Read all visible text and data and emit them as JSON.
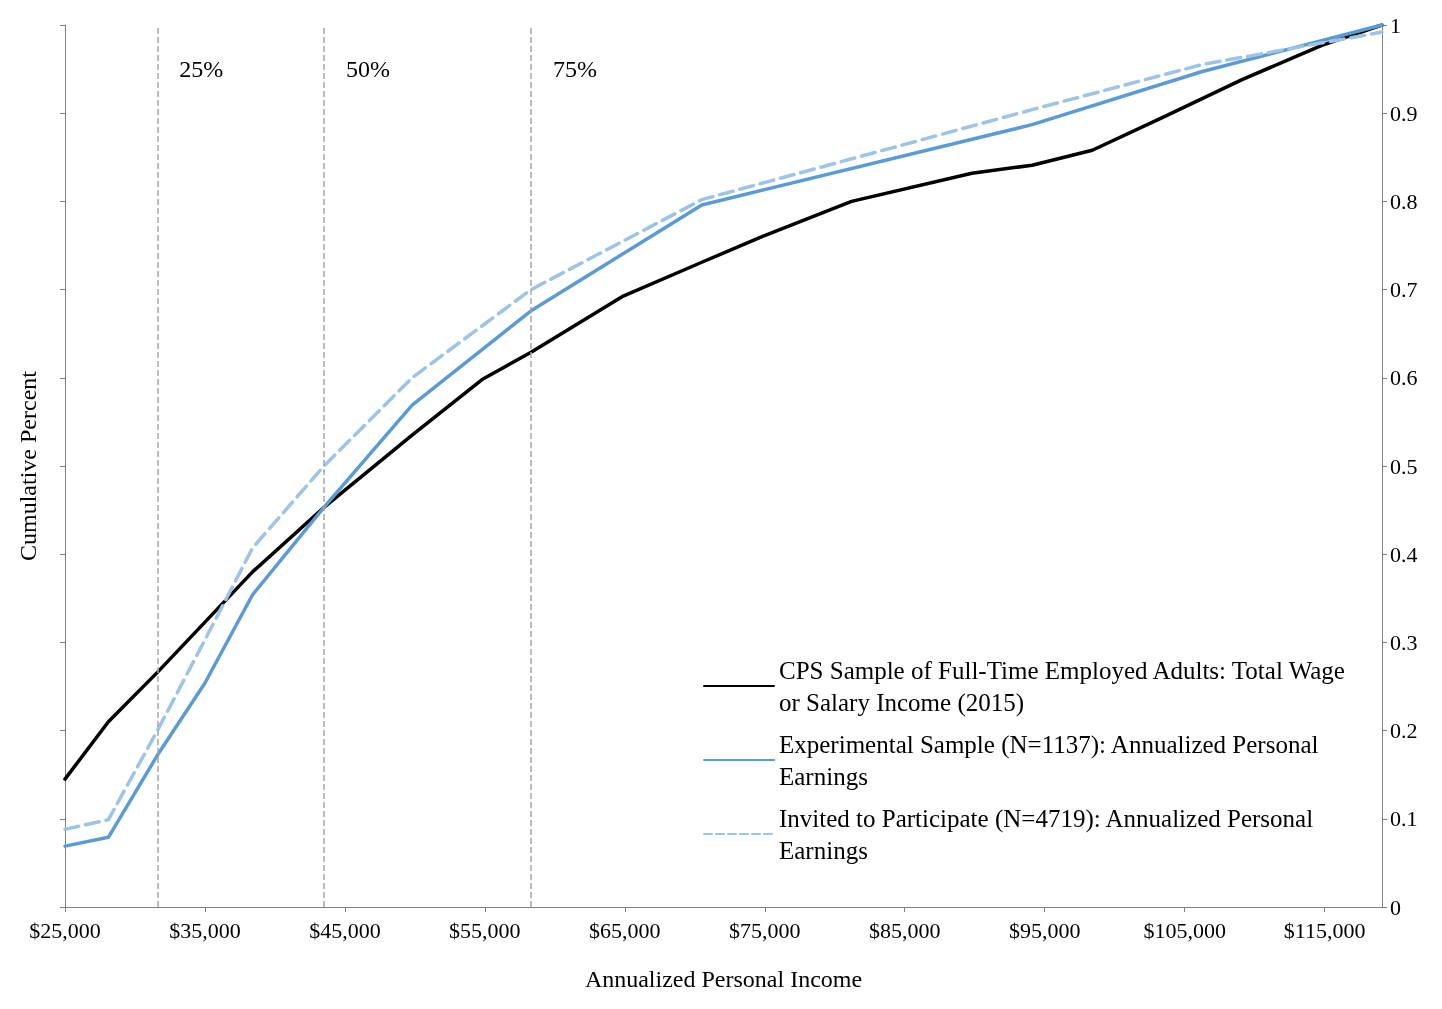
{
  "chart_data": {
    "type": "line",
    "xlabel": "Annualized Personal Income",
    "ylabel": "Cumulative Percent",
    "xlim": [
      25000,
      119100
    ],
    "xticks": [
      {
        "value": 25000,
        "label": "$25,000"
      },
      {
        "value": 35000,
        "label": "$35,000"
      },
      {
        "value": 45000,
        "label": "$45,000"
      },
      {
        "value": 55000,
        "label": "$55,000"
      },
      {
        "value": 65000,
        "label": "$65,000"
      },
      {
        "value": 75000,
        "label": "$75,000"
      },
      {
        "value": 85000,
        "label": "$85,000"
      },
      {
        "value": 95000,
        "label": "$95,000"
      },
      {
        "value": 105000,
        "label": "$105,000"
      },
      {
        "value": 115000,
        "label": "$115,000"
      }
    ],
    "ylim": [
      0,
      1
    ],
    "yticks": [
      0,
      0.1,
      0.2,
      0.3,
      0.4,
      0.5,
      0.6,
      0.7,
      0.8,
      0.9,
      1
    ],
    "grid": false,
    "legend": "bottom right",
    "marker": "none",
    "ref_lines": [
      {
        "axis": "x",
        "value": 31600,
        "color": "#a6a6a6",
        "line_style": "dashed"
      },
      {
        "axis": "x",
        "value": 43500,
        "color": "#a6a6a6",
        "line_style": "dashed"
      },
      {
        "axis": "x",
        "value": 58300,
        "color": "#a6a6a6",
        "line_style": "dashed"
      }
    ],
    "annotations": [
      {
        "text": "25%",
        "x": 31600,
        "y": 0.95
      },
      {
        "text": "50%",
        "x": 43500,
        "y": 0.95
      },
      {
        "text": "75%",
        "x": 58300,
        "y": 0.95
      }
    ],
    "series": [
      {
        "name": "CPS Sample of Full-Time Employed Adults: Total Wage or Salary Income (2015)",
        "color": "#000000",
        "line_style": "solid",
        "x": [
          25000,
          28100,
          31600,
          35000,
          38400,
          43500,
          49800,
          54800,
          58300,
          64800,
          70500,
          74800,
          81200,
          89800,
          94100,
          98400,
          103400,
          109100,
          114800,
          119100
        ],
        "values": [
          0.145,
          0.21,
          0.266,
          0.323,
          0.38,
          0.453,
          0.535,
          0.598,
          0.629,
          0.692,
          0.731,
          0.76,
          0.8,
          0.832,
          0.841,
          0.858,
          0.895,
          0.938,
          0.977,
          1.0
        ]
      },
      {
        "name": "Experimental Sample (N=1137): Annualized Personal Earnings",
        "color": "#5b9bd5",
        "line_style": "solid",
        "x": [
          25000,
          28100,
          31600,
          35000,
          38400,
          43500,
          49800,
          58300,
          70500,
          94100,
          106200,
          119100
        ],
        "values": [
          0.069,
          0.079,
          0.172,
          0.254,
          0.354,
          0.453,
          0.569,
          0.676,
          0.796,
          0.887,
          0.947,
          1.0
        ]
      },
      {
        "name": "Invited to Participate (N=4719): Annualized Personal Earnings",
        "color": "#9dc3e6",
        "line_style": "dashed",
        "x": [
          25000,
          28100,
          31600,
          35000,
          38400,
          43500,
          49800,
          58300,
          70500,
          94100,
          106200,
          119100
        ],
        "values": [
          0.088,
          0.099,
          0.2,
          0.303,
          0.407,
          0.5,
          0.6,
          0.7,
          0.802,
          0.904,
          0.955,
          0.992
        ]
      }
    ]
  }
}
